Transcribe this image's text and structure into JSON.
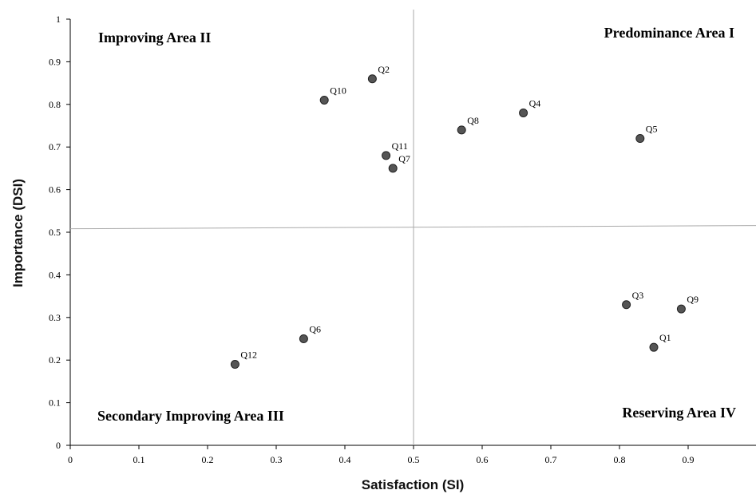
{
  "chart_data": {
    "type": "scatter",
    "xlabel": "Satisfaction (SI)",
    "ylabel": "Importance  (DSI)",
    "xlim": [
      0,
      1
    ],
    "ylim": [
      0,
      1
    ],
    "x_ticks": [
      "0",
      "0.1",
      "0.2",
      "0.3",
      "0.4",
      "0.5",
      "0.6",
      "0.7",
      "0.8",
      "0.9"
    ],
    "y_ticks": [
      "0",
      "0.1",
      "0.2",
      "0.3",
      "0.4",
      "0.5",
      "0.6",
      "0.7",
      "0.8",
      "0.9",
      "1"
    ],
    "grid": false,
    "divider_x": 0.5,
    "divider_y": 0.51,
    "quadrants": {
      "top_left": "Improving Area II",
      "top_right": "Predominance Area I",
      "bottom_left": "Secondary Improving Area III",
      "bottom_right": "Reserving Area IV"
    },
    "points": [
      {
        "label": "Q1",
        "x": 0.85,
        "y": 0.23
      },
      {
        "label": "Q2",
        "x": 0.44,
        "y": 0.86
      },
      {
        "label": "Q3",
        "x": 0.81,
        "y": 0.33
      },
      {
        "label": "Q4",
        "x": 0.66,
        "y": 0.78
      },
      {
        "label": "Q5",
        "x": 0.83,
        "y": 0.72
      },
      {
        "label": "Q6",
        "x": 0.34,
        "y": 0.25
      },
      {
        "label": "Q7",
        "x": 0.47,
        "y": 0.65
      },
      {
        "label": "Q8",
        "x": 0.57,
        "y": 0.74
      },
      {
        "label": "Q9",
        "x": 0.89,
        "y": 0.32
      },
      {
        "label": "Q10",
        "x": 0.37,
        "y": 0.81
      },
      {
        "label": "Q11",
        "x": 0.46,
        "y": 0.68
      },
      {
        "label": "Q12",
        "x": 0.24,
        "y": 0.19
      }
    ],
    "colors": {
      "point_fill": "#555555",
      "point_stroke": "#222222",
      "axis": "#000000",
      "divider": "#aaaaaa"
    }
  }
}
